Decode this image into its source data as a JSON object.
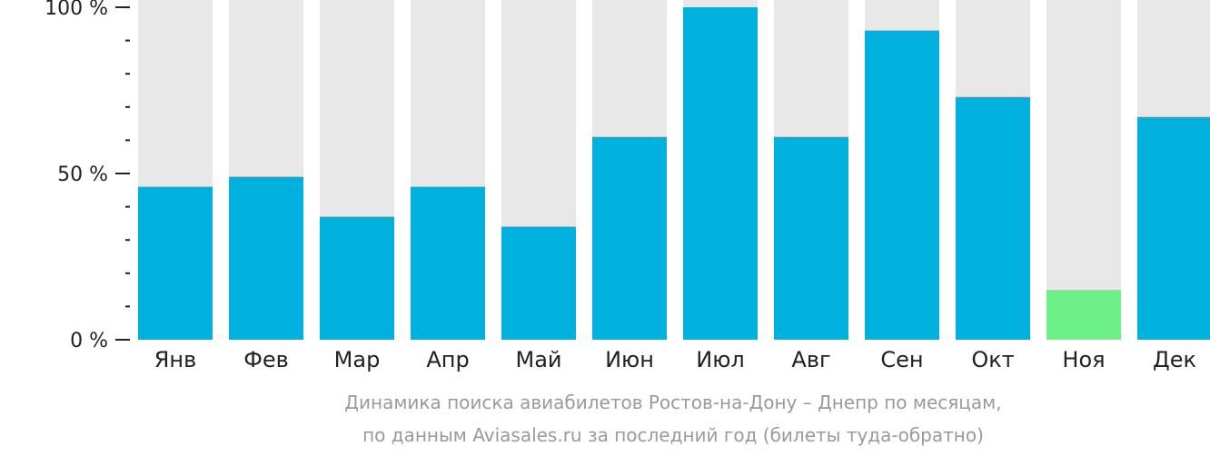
{
  "chart_data": {
    "type": "bar",
    "categories": [
      "Янв",
      "Фев",
      "Мар",
      "Апр",
      "Май",
      "Июн",
      "Июл",
      "Авг",
      "Сен",
      "Окт",
      "Ноя",
      "Дек"
    ],
    "values": [
      46,
      49,
      37,
      46,
      34,
      61,
      100,
      61,
      93,
      73,
      15,
      67
    ],
    "ylim": [
      0,
      100
    ],
    "y_ticks": [
      {
        "value": 100,
        "label": "100 %"
      },
      {
        "value": 50,
        "label": "50 %"
      },
      {
        "value": 0,
        "label": "0 %"
      }
    ],
    "y_minor_ticks": [
      90,
      80,
      70,
      60,
      40,
      30,
      20,
      10
    ],
    "highlight_index": 10,
    "colors": {
      "bar": "#00b0dd",
      "bar_highlight": "#6cf087",
      "background_bar": "#e8e8e8",
      "axis": "#222222"
    },
    "title": "Динамика поиска авиабилетов Ростов-на-Дону – Днепр по месяцам,",
    "subtitle": "по данным Aviasales.ru за последний год (билеты туда-обратно)"
  }
}
